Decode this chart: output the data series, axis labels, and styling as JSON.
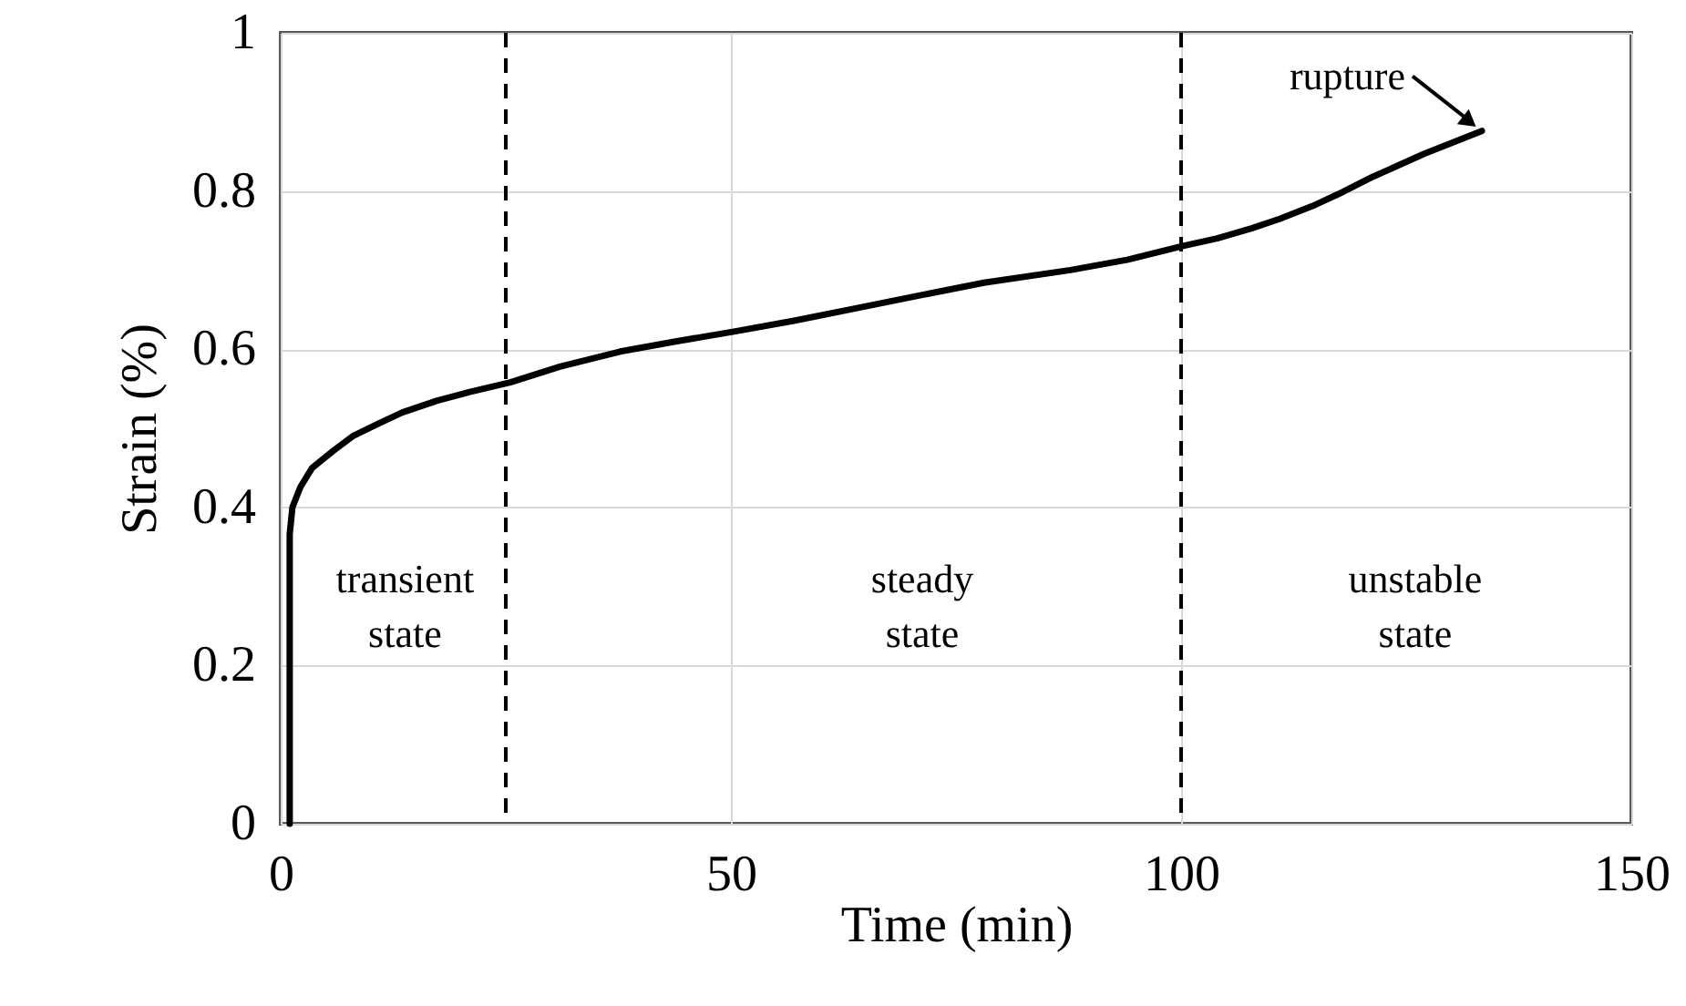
{
  "chart_data": {
    "type": "line",
    "xlabel": "Time (min)",
    "ylabel": "Strain (%)",
    "xlim": [
      0,
      150
    ],
    "xticks": [
      0,
      50,
      100,
      150
    ],
    "ylim": [
      0,
      1
    ],
    "yticks": [
      0,
      0.2,
      0.4,
      0.6,
      0.8,
      1
    ],
    "grid": true,
    "line_style": "solid",
    "marker": "none",
    "series": [
      {
        "color": "#000000",
        "x": [
          1.0,
          1.0,
          1.3,
          2.2,
          3.5,
          5.9,
          8.0,
          10.7,
          13.5,
          17.4,
          21.0,
          25.5,
          31.0,
          37.7,
          44.0,
          50.2,
          57.0,
          64.0,
          71.0,
          78.1,
          87.7,
          94.0,
          100.0,
          104.0,
          107.9,
          111.0,
          114.6,
          118.0,
          121.3,
          127.0,
          133.4
        ],
        "values": [
          0.0,
          0.366,
          0.4,
          0.426,
          0.45,
          0.472,
          0.49,
          0.505,
          0.52,
          0.535,
          0.546,
          0.558,
          0.578,
          0.597,
          0.61,
          0.622,
          0.636,
          0.652,
          0.668,
          0.684,
          0.7,
          0.713,
          0.73,
          0.74,
          0.753,
          0.765,
          0.781,
          0.799,
          0.818,
          0.847,
          0.876
        ]
      }
    ],
    "ref_lines": [
      {
        "axis": "x",
        "value": 25,
        "line_style": "dashed",
        "color": "#000000"
      },
      {
        "axis": "x",
        "value": 100,
        "line_style": "dashed",
        "color": "#000000"
      }
    ],
    "annotations": [
      "transient state",
      "steady state",
      "unstable state",
      {
        "text": "rupture",
        "x": 133.4,
        "y": 0.876
      }
    ]
  }
}
